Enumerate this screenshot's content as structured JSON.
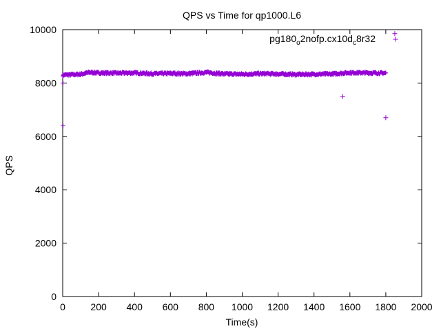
{
  "chart_data": {
    "type": "scatter",
    "title": "QPS vs Time for qp1000.L6",
    "xlabel": "Time(s)",
    "ylabel": "QPS",
    "xlim": [
      0,
      2000
    ],
    "ylim": [
      0,
      10000
    ],
    "x_ticks": [
      0,
      200,
      400,
      600,
      800,
      1000,
      1200,
      1400,
      1600,
      1800,
      2000
    ],
    "y_ticks": [
      0,
      2000,
      4000,
      6000,
      8000,
      10000
    ],
    "x_tick_labels": [
      "0",
      "200",
      "400",
      "600",
      "800",
      "1000",
      "1200",
      "1400",
      "1600",
      "1800",
      "2000"
    ],
    "y_tick_labels": [
      "0",
      "2000",
      "4000",
      "6000",
      "8000",
      "10000"
    ],
    "grid": false,
    "legend_position": "top-right",
    "marker": "plus",
    "series": [
      {
        "name": "pg180_o2nofp.cx10d_c8r32",
        "legend_parts": [
          {
            "text": "pg180",
            "sub": false
          },
          {
            "text": "o",
            "sub": true
          },
          {
            "text": "2nofp.cx10d",
            "sub": false
          },
          {
            "text": "c",
            "sub": true
          },
          {
            "text": "8r32",
            "sub": false
          }
        ],
        "color": "#9400d3",
        "band": {
          "x_start": 0,
          "x_end": 1800,
          "step": 2,
          "profile": [
            [
              0,
              8300
            ],
            [
              100,
              8330
            ],
            [
              150,
              8400
            ],
            [
              200,
              8380
            ],
            [
              300,
              8370
            ],
            [
              400,
              8380
            ],
            [
              500,
              8350
            ],
            [
              600,
              8360
            ],
            [
              700,
              8350
            ],
            [
              800,
              8400
            ],
            [
              900,
              8340
            ],
            [
              1000,
              8330
            ],
            [
              1100,
              8350
            ],
            [
              1200,
              8340
            ],
            [
              1300,
              8320
            ],
            [
              1400,
              8330
            ],
            [
              1500,
              8340
            ],
            [
              1600,
              8390
            ],
            [
              1700,
              8380
            ],
            [
              1800,
              8370
            ]
          ],
          "spread": 80
        },
        "points": [
          {
            "x": 2,
            "y": 6400
          },
          {
            "x": 2,
            "y": 8000
          },
          {
            "x": 1560,
            "y": 7500
          },
          {
            "x": 1800,
            "y": 6700
          },
          {
            "x": 1850,
            "y": 9850
          }
        ]
      }
    ]
  }
}
